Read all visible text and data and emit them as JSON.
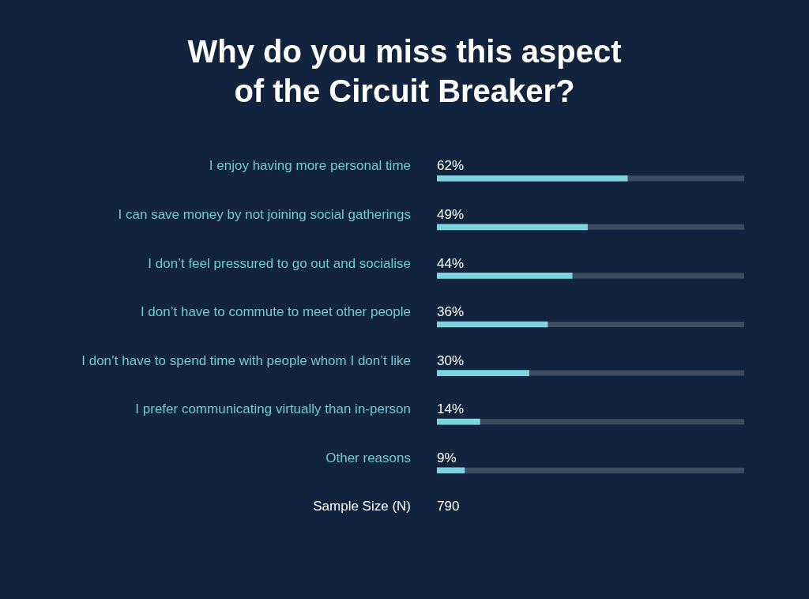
{
  "chart_data": {
    "type": "bar",
    "orientation": "horizontal",
    "title": "Why do you miss this aspect of the Circuit Breaker?",
    "categories": [
      "I enjoy having more personal time",
      "I can save money by not joining social gatherings",
      "I don’t feel pressured to go out and socialise",
      "I don’t have to commute to meet other people",
      "I don’t have to spend time with people whom I don’t like",
      "I prefer communicating virtually than in-person",
      "Other reasons"
    ],
    "values": [
      62,
      49,
      44,
      36,
      30,
      14,
      9
    ],
    "color": "#7dd3e0",
    "value_labels": [
      "62%",
      "49%",
      "44%",
      "36%",
      "30%",
      "14%",
      "9%"
    ],
    "xlim": [
      0,
      100
    ],
    "tick_labels": "y",
    "grid": false,
    "legend": false,
    "annotations": [
      "Sample Size (N)",
      "790"
    ]
  }
}
